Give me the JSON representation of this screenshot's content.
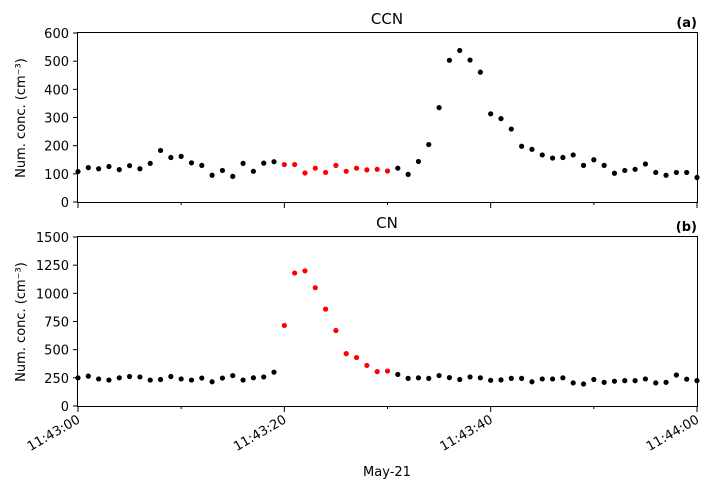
{
  "figure": {
    "xlabel": "May-21",
    "x_tick_labels": [
      "11:43:00",
      "11:43:20",
      "11:43:40",
      "11:44:00"
    ],
    "x_tick_seconds": [
      0,
      20,
      40,
      60
    ],
    "x_minor_tick_seconds": [
      10,
      30,
      50
    ],
    "xlim_seconds": [
      0,
      60
    ]
  },
  "chart_data": [
    {
      "type": "scatter",
      "title": "CCN",
      "panel_label": "(a)",
      "ylabel": "Num. conc. (cm⁻³)",
      "ylim": [
        0,
        600
      ],
      "yticks": [
        0,
        100,
        200,
        300,
        400,
        500,
        600
      ],
      "x_unit": "seconds after 11:43:00",
      "colors": {
        "normal": "#000000",
        "highlight": "#ff0000"
      },
      "points": [
        {
          "x": 0,
          "y": 108,
          "c": "normal"
        },
        {
          "x": 1,
          "y": 122,
          "c": "normal"
        },
        {
          "x": 2,
          "y": 118,
          "c": "normal"
        },
        {
          "x": 3,
          "y": 126,
          "c": "normal"
        },
        {
          "x": 4,
          "y": 115,
          "c": "normal"
        },
        {
          "x": 5,
          "y": 129,
          "c": "normal"
        },
        {
          "x": 6,
          "y": 118,
          "c": "normal"
        },
        {
          "x": 7,
          "y": 137,
          "c": "normal"
        },
        {
          "x": 8,
          "y": 183,
          "c": "normal"
        },
        {
          "x": 9,
          "y": 158,
          "c": "normal"
        },
        {
          "x": 10,
          "y": 162,
          "c": "normal"
        },
        {
          "x": 11,
          "y": 139,
          "c": "normal"
        },
        {
          "x": 12,
          "y": 130,
          "c": "normal"
        },
        {
          "x": 13,
          "y": 95,
          "c": "normal"
        },
        {
          "x": 14,
          "y": 112,
          "c": "normal"
        },
        {
          "x": 15,
          "y": 91,
          "c": "normal"
        },
        {
          "x": 16,
          "y": 137,
          "c": "normal"
        },
        {
          "x": 17,
          "y": 109,
          "c": "normal"
        },
        {
          "x": 18,
          "y": 138,
          "c": "normal"
        },
        {
          "x": 19,
          "y": 143,
          "c": "normal"
        },
        {
          "x": 20,
          "y": 133,
          "c": "highlight"
        },
        {
          "x": 21,
          "y": 133,
          "c": "highlight"
        },
        {
          "x": 22,
          "y": 103,
          "c": "highlight"
        },
        {
          "x": 23,
          "y": 120,
          "c": "highlight"
        },
        {
          "x": 24,
          "y": 105,
          "c": "highlight"
        },
        {
          "x": 25,
          "y": 130,
          "c": "highlight"
        },
        {
          "x": 26,
          "y": 109,
          "c": "highlight"
        },
        {
          "x": 27,
          "y": 120,
          "c": "highlight"
        },
        {
          "x": 28,
          "y": 114,
          "c": "highlight"
        },
        {
          "x": 29,
          "y": 116,
          "c": "highlight"
        },
        {
          "x": 30,
          "y": 110,
          "c": "highlight"
        },
        {
          "x": 31,
          "y": 120,
          "c": "normal"
        },
        {
          "x": 32,
          "y": 98,
          "c": "normal"
        },
        {
          "x": 33,
          "y": 144,
          "c": "normal"
        },
        {
          "x": 34,
          "y": 204,
          "c": "normal"
        },
        {
          "x": 35,
          "y": 335,
          "c": "normal"
        },
        {
          "x": 36,
          "y": 503,
          "c": "normal"
        },
        {
          "x": 37,
          "y": 538,
          "c": "normal"
        },
        {
          "x": 38,
          "y": 504,
          "c": "normal"
        },
        {
          "x": 39,
          "y": 461,
          "c": "normal"
        },
        {
          "x": 40,
          "y": 313,
          "c": "normal"
        },
        {
          "x": 41,
          "y": 296,
          "c": "normal"
        },
        {
          "x": 42,
          "y": 259,
          "c": "normal"
        },
        {
          "x": 43,
          "y": 198,
          "c": "normal"
        },
        {
          "x": 44,
          "y": 187,
          "c": "normal"
        },
        {
          "x": 45,
          "y": 167,
          "c": "normal"
        },
        {
          "x": 46,
          "y": 156,
          "c": "normal"
        },
        {
          "x": 47,
          "y": 158,
          "c": "normal"
        },
        {
          "x": 48,
          "y": 167,
          "c": "normal"
        },
        {
          "x": 49,
          "y": 130,
          "c": "normal"
        },
        {
          "x": 50,
          "y": 150,
          "c": "normal"
        },
        {
          "x": 51,
          "y": 130,
          "c": "normal"
        },
        {
          "x": 52,
          "y": 102,
          "c": "normal"
        },
        {
          "x": 53,
          "y": 112,
          "c": "normal"
        },
        {
          "x": 54,
          "y": 116,
          "c": "normal"
        },
        {
          "x": 55,
          "y": 135,
          "c": "normal"
        },
        {
          "x": 56,
          "y": 105,
          "c": "normal"
        },
        {
          "x": 57,
          "y": 95,
          "c": "normal"
        },
        {
          "x": 58,
          "y": 105,
          "c": "normal"
        },
        {
          "x": 59,
          "y": 105,
          "c": "normal"
        },
        {
          "x": 60,
          "y": 87,
          "c": "normal"
        }
      ]
    },
    {
      "type": "scatter",
      "title": "CN",
      "panel_label": "(b)",
      "ylabel": "Num. conc. (cm⁻³)",
      "ylim": [
        0,
        1500
      ],
      "yticks": [
        0,
        250,
        500,
        750,
        1000,
        1250,
        1500
      ],
      "x_unit": "seconds after 11:43:00",
      "colors": {
        "normal": "#000000",
        "highlight": "#ff0000"
      },
      "points": [
        {
          "x": 0,
          "y": 250,
          "c": "normal"
        },
        {
          "x": 1,
          "y": 265,
          "c": "normal"
        },
        {
          "x": 2,
          "y": 240,
          "c": "normal"
        },
        {
          "x": 3,
          "y": 230,
          "c": "normal"
        },
        {
          "x": 4,
          "y": 250,
          "c": "normal"
        },
        {
          "x": 5,
          "y": 262,
          "c": "normal"
        },
        {
          "x": 6,
          "y": 258,
          "c": "normal"
        },
        {
          "x": 7,
          "y": 230,
          "c": "normal"
        },
        {
          "x": 8,
          "y": 235,
          "c": "normal"
        },
        {
          "x": 9,
          "y": 262,
          "c": "normal"
        },
        {
          "x": 10,
          "y": 240,
          "c": "normal"
        },
        {
          "x": 11,
          "y": 230,
          "c": "normal"
        },
        {
          "x": 12,
          "y": 248,
          "c": "normal"
        },
        {
          "x": 13,
          "y": 215,
          "c": "normal"
        },
        {
          "x": 14,
          "y": 248,
          "c": "normal"
        },
        {
          "x": 15,
          "y": 270,
          "c": "normal"
        },
        {
          "x": 16,
          "y": 230,
          "c": "normal"
        },
        {
          "x": 17,
          "y": 250,
          "c": "normal"
        },
        {
          "x": 18,
          "y": 258,
          "c": "normal"
        },
        {
          "x": 19,
          "y": 300,
          "c": "normal"
        },
        {
          "x": 20,
          "y": 715,
          "c": "highlight"
        },
        {
          "x": 21,
          "y": 1180,
          "c": "highlight"
        },
        {
          "x": 22,
          "y": 1200,
          "c": "highlight"
        },
        {
          "x": 23,
          "y": 1050,
          "c": "highlight"
        },
        {
          "x": 24,
          "y": 860,
          "c": "highlight"
        },
        {
          "x": 25,
          "y": 670,
          "c": "highlight"
        },
        {
          "x": 26,
          "y": 465,
          "c": "highlight"
        },
        {
          "x": 27,
          "y": 430,
          "c": "highlight"
        },
        {
          "x": 28,
          "y": 360,
          "c": "highlight"
        },
        {
          "x": 29,
          "y": 305,
          "c": "highlight"
        },
        {
          "x": 30,
          "y": 310,
          "c": "highlight"
        },
        {
          "x": 31,
          "y": 280,
          "c": "normal"
        },
        {
          "x": 32,
          "y": 245,
          "c": "normal"
        },
        {
          "x": 33,
          "y": 250,
          "c": "normal"
        },
        {
          "x": 34,
          "y": 245,
          "c": "normal"
        },
        {
          "x": 35,
          "y": 270,
          "c": "normal"
        },
        {
          "x": 36,
          "y": 252,
          "c": "normal"
        },
        {
          "x": 37,
          "y": 235,
          "c": "normal"
        },
        {
          "x": 38,
          "y": 258,
          "c": "normal"
        },
        {
          "x": 39,
          "y": 250,
          "c": "normal"
        },
        {
          "x": 40,
          "y": 228,
          "c": "normal"
        },
        {
          "x": 41,
          "y": 232,
          "c": "normal"
        },
        {
          "x": 42,
          "y": 245,
          "c": "normal"
        },
        {
          "x": 43,
          "y": 245,
          "c": "normal"
        },
        {
          "x": 44,
          "y": 215,
          "c": "normal"
        },
        {
          "x": 45,
          "y": 240,
          "c": "normal"
        },
        {
          "x": 46,
          "y": 240,
          "c": "normal"
        },
        {
          "x": 47,
          "y": 250,
          "c": "normal"
        },
        {
          "x": 48,
          "y": 205,
          "c": "normal"
        },
        {
          "x": 49,
          "y": 195,
          "c": "normal"
        },
        {
          "x": 50,
          "y": 235,
          "c": "normal"
        },
        {
          "x": 51,
          "y": 210,
          "c": "normal"
        },
        {
          "x": 52,
          "y": 220,
          "c": "normal"
        },
        {
          "x": 53,
          "y": 225,
          "c": "normal"
        },
        {
          "x": 54,
          "y": 225,
          "c": "normal"
        },
        {
          "x": 55,
          "y": 240,
          "c": "normal"
        },
        {
          "x": 56,
          "y": 205,
          "c": "normal"
        },
        {
          "x": 57,
          "y": 210,
          "c": "normal"
        },
        {
          "x": 58,
          "y": 275,
          "c": "normal"
        },
        {
          "x": 59,
          "y": 238,
          "c": "normal"
        },
        {
          "x": 60,
          "y": 225,
          "c": "normal"
        }
      ]
    }
  ]
}
